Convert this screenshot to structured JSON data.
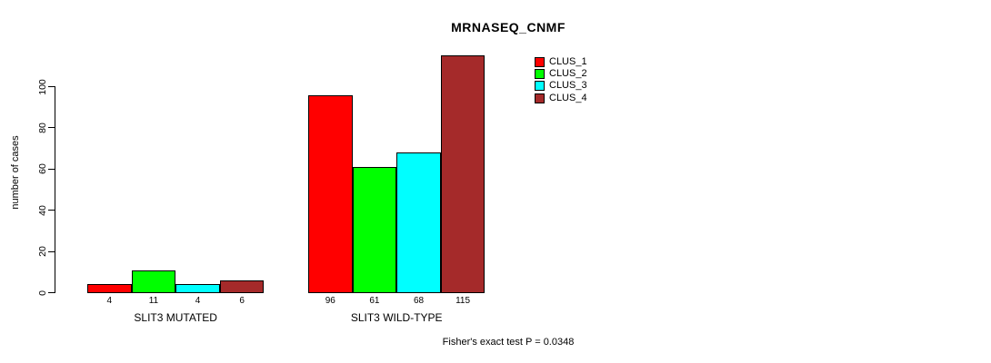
{
  "title": "MRNASEQ_CNMF",
  "footer": "Fisher's exact test P = 0.0348",
  "chart_data": {
    "type": "bar",
    "title": "MRNASEQ_CNMF",
    "xlabel": "",
    "ylabel": "number of cases",
    "ylim": [
      0,
      100
    ],
    "yticks": [
      0,
      20,
      40,
      60,
      80,
      100
    ],
    "grid": false,
    "legend_position": "top-right",
    "categories": [
      "SLIT3 MUTATED",
      "SLIT3 WILD-TYPE"
    ],
    "series": [
      {
        "name": "CLUS_1",
        "color": "#FF0000",
        "values": [
          4,
          96
        ]
      },
      {
        "name": "CLUS_2",
        "color": "#00FF00",
        "values": [
          11,
          61
        ]
      },
      {
        "name": "CLUS_3",
        "color": "#00FFFF",
        "values": [
          4,
          68
        ]
      },
      {
        "name": "CLUS_4",
        "color": "#A52A2A",
        "values": [
          6,
          115
        ]
      }
    ],
    "bar_value_labels": [
      [
        "4",
        "11",
        "4",
        "6"
      ],
      [
        "96",
        "61",
        "68",
        "115"
      ]
    ],
    "annotation": "Fisher's exact test P = 0.0348"
  }
}
